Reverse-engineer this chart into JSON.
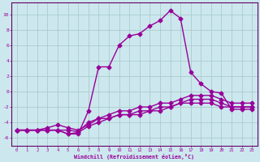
{
  "xlabel": "Windchill (Refroidissement éolien,°C)",
  "background_color": "#cce8ee",
  "grid_color": "#aacccc",
  "line_color": "#990099",
  "spine_color": "#660066",
  "xlim": [
    -0.5,
    23.5
  ],
  "ylim": [
    -7,
    11.5
  ],
  "xticks": [
    0,
    1,
    2,
    3,
    4,
    5,
    6,
    7,
    8,
    9,
    10,
    11,
    12,
    13,
    14,
    15,
    16,
    17,
    18,
    19,
    20,
    21,
    22,
    23
  ],
  "yticks": [
    -6,
    -4,
    -2,
    0,
    2,
    4,
    6,
    8,
    10
  ],
  "s1_x": [
    0,
    1,
    2,
    3,
    4,
    5,
    6,
    7,
    8,
    9,
    10,
    11,
    12,
    13,
    14,
    15,
    16,
    17,
    18,
    19,
    20,
    21,
    22,
    23
  ],
  "s1_y": [
    -5,
    -5,
    -5,
    -5,
    -5,
    -5.5,
    -5.3,
    -4.5,
    -4,
    -3.5,
    -3,
    -3,
    -3,
    -2.5,
    -2.5,
    -2,
    -1.5,
    -1.5,
    -1.5,
    -1.5,
    -2,
    -2,
    -2,
    -2
  ],
  "s2_x": [
    0,
    1,
    2,
    3,
    4,
    5,
    6,
    7,
    8,
    9,
    10,
    11,
    12,
    13,
    14,
    15,
    16,
    17,
    18,
    19,
    20,
    21,
    22,
    23
  ],
  "s2_y": [
    -5,
    -5,
    -5,
    -5,
    -5,
    -5,
    -5.2,
    -4,
    -3.5,
    -3.5,
    -3,
    -3,
    -2.5,
    -2.5,
    -2,
    -2,
    -1.5,
    -1,
    -1,
    -1,
    -1.5,
    -2,
    -2,
    -2
  ],
  "s3_x": [
    0,
    1,
    2,
    3,
    4,
    5,
    6,
    7,
    8,
    9,
    10,
    11,
    12,
    13,
    14,
    15,
    16,
    17,
    18,
    19,
    20,
    21,
    22,
    23
  ],
  "s3_y": [
    -5,
    -5,
    -5,
    -4.7,
    -4.3,
    -4.7,
    -5,
    -4.3,
    -3.5,
    -3,
    -2.5,
    -2.5,
    -2,
    -2,
    -1.5,
    -1.5,
    -1,
    -0.5,
    -0.5,
    -0.5,
    -1,
    -1.5,
    -1.5,
    -1.5
  ],
  "s4_x": [
    0,
    1,
    2,
    3,
    4,
    5,
    6,
    7,
    8,
    9,
    10,
    11,
    12,
    13,
    14,
    15,
    16,
    17,
    18,
    19,
    20,
    21,
    22,
    23
  ],
  "s4_y": [
    -5,
    -5,
    -5,
    -5,
    -5,
    -5.5,
    -5.5,
    -2.5,
    3.2,
    3.2,
    6.0,
    7.2,
    7.5,
    8.5,
    9.2,
    10.5,
    9.5,
    2.5,
    1.0,
    0.0,
    -0.2,
    -2.3,
    -2.3,
    -2.3
  ],
  "marker": "D",
  "markersize": 2.5,
  "linewidth": 1.0
}
